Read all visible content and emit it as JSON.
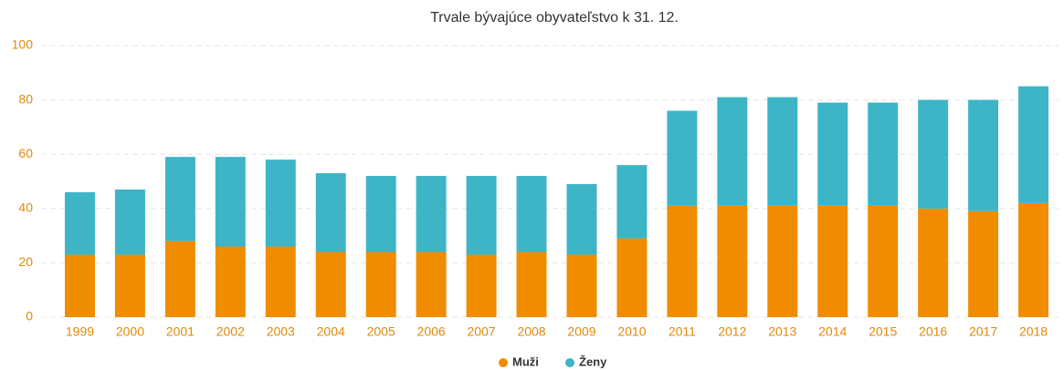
{
  "chart_data": {
    "type": "stacked_bar",
    "title": "Trvale bývajúce obyvateľstvo k 31. 12.",
    "categories": [
      "1999",
      "2000",
      "2001",
      "2002",
      "2003",
      "2004",
      "2005",
      "2006",
      "2007",
      "2008",
      "2009",
      "2010",
      "2011",
      "2012",
      "2013",
      "2014",
      "2015",
      "2016",
      "2017",
      "2018"
    ],
    "series": [
      {
        "name": "Muži",
        "color": "#f08c00",
        "values": [
          23,
          23,
          28,
          26,
          26,
          24,
          24,
          24,
          23,
          24,
          23,
          29,
          41,
          41,
          41,
          41,
          41,
          40,
          39,
          42
        ]
      },
      {
        "name": "Ženy",
        "color": "#3db5c7",
        "values": [
          23,
          24,
          31,
          33,
          32,
          29,
          28,
          28,
          29,
          28,
          26,
          27,
          35,
          40,
          40,
          38,
          38,
          40,
          41,
          43
        ]
      }
    ],
    "ylim": [
      0,
      100
    ],
    "yticks": [
      0,
      20,
      40,
      60,
      80,
      100
    ],
    "grid": true,
    "legend": "bottom"
  }
}
